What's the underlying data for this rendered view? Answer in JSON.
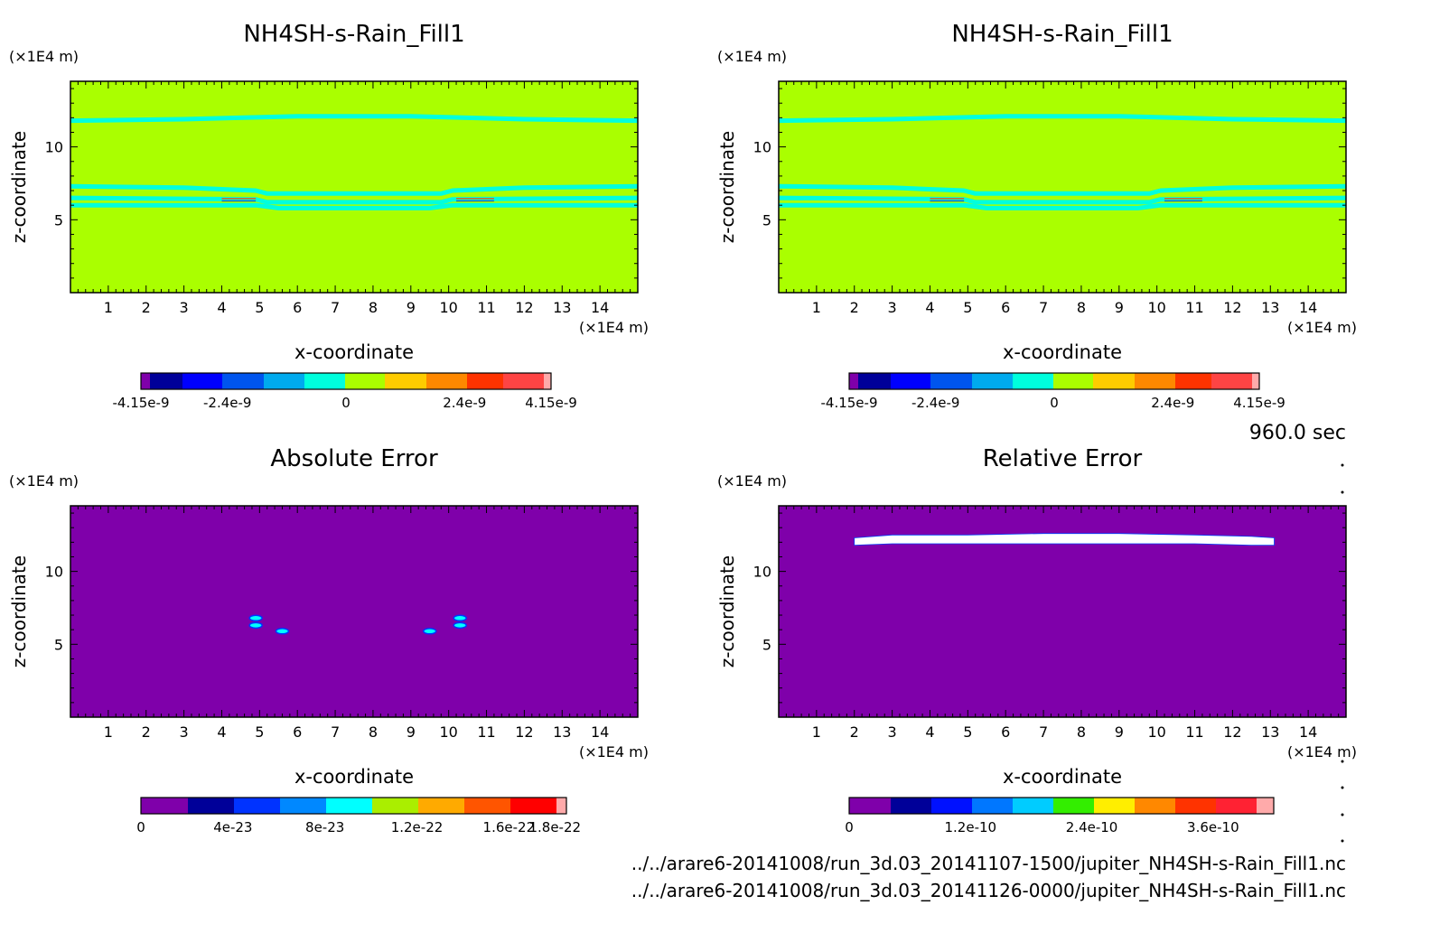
{
  "time_label": "960.0 sec",
  "file_paths": [
    "../../arare6-20141008/run_3d.03_20141107-1500/jupiter_NH4SH-s-Rain_Fill1.nc",
    "../../arare6-20141008/run_3d.03_20141126-0000/jupiter_NH4SH-s-Rain_Fill1.nc"
  ],
  "colors": {
    "dataset_background": "#aaff00",
    "dataset_contour": "#00ffdd",
    "error_background": "#7f00aa",
    "relative_high": "#ffffff"
  },
  "chart_data": [
    {
      "type": "heatmap",
      "title": "NH4SH-s-Rain_Fill1",
      "xlabel": "x-coordinate",
      "ylabel": "z-coordinate",
      "x_unit": "(×1E4 m)",
      "z_unit": "(×1E4 m)",
      "xlim": [
        0,
        15
      ],
      "zlim": [
        0,
        14.5
      ],
      "x_ticks": [
        1,
        2,
        3,
        4,
        5,
        6,
        7,
        8,
        9,
        10,
        11,
        12,
        13,
        14
      ],
      "z_ticks": [
        5,
        10
      ],
      "background_color": "#aaff00",
      "contour_bands": [
        {
          "x": [
            0,
            3,
            4.9,
            5.2,
            9.8,
            10.1,
            12,
            15
          ],
          "z": [
            7.3,
            7.2,
            7.0,
            6.8,
            6.8,
            7.0,
            7.2,
            7.3
          ]
        },
        {
          "x": [
            0,
            4.9,
            5.2,
            9.8,
            10.1,
            15
          ],
          "z": [
            6.5,
            6.4,
            6.2,
            6.2,
            6.4,
            6.5
          ]
        },
        {
          "x": [
            0,
            4.9,
            5.5,
            9.5,
            10.1,
            15
          ],
          "z": [
            6.0,
            6.0,
            5.8,
            5.8,
            6.0,
            6.0
          ]
        },
        {
          "x": [
            0,
            3,
            6,
            9,
            12,
            15
          ],
          "z": [
            11.8,
            11.9,
            12.1,
            12.1,
            11.9,
            11.8
          ]
        }
      ],
      "colorbar": {
        "ticks": [
          "-4.15e-9",
          "-2.4e-9",
          "0",
          "2.4e-9",
          "4.15e-9"
        ],
        "tick_values": [
          -4.15e-09,
          -2.4e-09,
          0,
          2.4e-09,
          4.15e-09
        ],
        "range": [
          -4.15e-09,
          4.15e-09
        ],
        "colors": [
          "#7f00aa",
          "#000099",
          "#0000ff",
          "#0055ee",
          "#00aaee",
          "#00ffdd",
          "#aaff00",
          "#ffcc00",
          "#ff8800",
          "#ff3300",
          "#ff4444",
          "#ffaaaa"
        ],
        "widths": [
          10,
          36,
          44,
          46,
          45,
          45,
          44,
          46,
          45,
          40,
          45,
          8
        ]
      }
    },
    {
      "type": "heatmap",
      "title": "NH4SH-s-Rain_Fill1",
      "xlabel": "x-coordinate",
      "ylabel": "z-coordinate",
      "x_unit": "(×1E4 m)",
      "z_unit": "(×1E4 m)",
      "xlim": [
        0,
        15
      ],
      "zlim": [
        0,
        14.5
      ],
      "x_ticks": [
        1,
        2,
        3,
        4,
        5,
        6,
        7,
        8,
        9,
        10,
        11,
        12,
        13,
        14
      ],
      "z_ticks": [
        5,
        10
      ],
      "background_color": "#aaff00",
      "contour_bands": [
        {
          "x": [
            0,
            3,
            4.9,
            5.2,
            9.8,
            10.1,
            12,
            15
          ],
          "z": [
            7.3,
            7.2,
            7.0,
            6.8,
            6.8,
            7.0,
            7.2,
            7.3
          ]
        },
        {
          "x": [
            0,
            4.9,
            5.2,
            9.8,
            10.1,
            15
          ],
          "z": [
            6.5,
            6.4,
            6.2,
            6.2,
            6.4,
            6.5
          ]
        },
        {
          "x": [
            0,
            4.9,
            5.5,
            9.5,
            10.1,
            15
          ],
          "z": [
            6.0,
            6.0,
            5.8,
            5.8,
            6.0,
            6.0
          ]
        },
        {
          "x": [
            0,
            3,
            6,
            9,
            12,
            15
          ],
          "z": [
            11.8,
            11.9,
            12.1,
            12.1,
            11.9,
            11.8
          ]
        }
      ],
      "colorbar": {
        "ticks": [
          "-4.15e-9",
          "-2.4e-9",
          "0",
          "2.4e-9",
          "4.15e-9"
        ],
        "tick_values": [
          -4.15e-09,
          -2.4e-09,
          0,
          2.4e-09,
          4.15e-09
        ],
        "range": [
          -4.15e-09,
          4.15e-09
        ],
        "colors": [
          "#7f00aa",
          "#000099",
          "#0000ff",
          "#0055ee",
          "#00aaee",
          "#00ffdd",
          "#aaff00",
          "#ffcc00",
          "#ff8800",
          "#ff3300",
          "#ff4444",
          "#ffaaaa"
        ],
        "widths": [
          10,
          36,
          44,
          46,
          45,
          45,
          44,
          46,
          45,
          40,
          45,
          8
        ]
      }
    },
    {
      "type": "heatmap",
      "title": "Absolute Error",
      "xlabel": "x-coordinate",
      "ylabel": "z-coordinate",
      "x_unit": "(×1E4 m)",
      "z_unit": "(×1E4 m)",
      "xlim": [
        0,
        15
      ],
      "zlim": [
        0,
        14.5
      ],
      "x_ticks": [
        1,
        2,
        3,
        4,
        5,
        6,
        7,
        8,
        9,
        10,
        11,
        12,
        13,
        14
      ],
      "z_ticks": [
        5,
        10
      ],
      "background_color": "#7f00aa",
      "error_spots": [
        {
          "x": 4.9,
          "z": 6.8
        },
        {
          "x": 4.9,
          "z": 6.3
        },
        {
          "x": 5.6,
          "z": 5.9
        },
        {
          "x": 10.3,
          "z": 6.8
        },
        {
          "x": 10.3,
          "z": 6.3
        },
        {
          "x": 9.5,
          "z": 5.9
        }
      ],
      "colorbar": {
        "ticks": [
          "0",
          "4e-23",
          "8e-23",
          "1.2e-22",
          "1.6e-22",
          "1.8e-22"
        ],
        "tick_values": [
          0,
          4e-23,
          8e-23,
          1.2e-22,
          1.6e-22,
          1.8e-22
        ],
        "range": [
          0,
          1.85e-22
        ],
        "colors": [
          "#7f00aa",
          "#000099",
          "#0033ff",
          "#0088ff",
          "#00ffff",
          "#aaee00",
          "#ffaa00",
          "#ff5500",
          "#ff0000",
          "#ffaaaa"
        ],
        "widths": [
          52,
          51,
          51,
          51,
          51,
          51,
          51,
          51,
          51,
          11
        ]
      }
    },
    {
      "type": "heatmap",
      "title": "Relative Error",
      "xlabel": "x-coordinate",
      "ylabel": "z-coordinate",
      "x_unit": "(×1E4 m)",
      "z_unit": "(×1E4 m)",
      "xlim": [
        0,
        15
      ],
      "zlim": [
        0,
        14.5
      ],
      "x_ticks": [
        1,
        2,
        3,
        4,
        5,
        6,
        7,
        8,
        9,
        10,
        11,
        12,
        13,
        14
      ],
      "z_ticks": [
        5,
        10
      ],
      "background_color": "#7f00aa",
      "high_region": {
        "x": [
          2.0,
          3,
          5,
          7,
          9,
          11,
          12.5,
          13.1
        ],
        "z_top": [
          12.3,
          12.5,
          12.5,
          12.6,
          12.6,
          12.5,
          12.4,
          12.3
        ],
        "z_bottom": [
          11.8,
          11.9,
          11.9,
          11.9,
          11.9,
          11.9,
          11.8,
          11.8
        ]
      },
      "colorbar": {
        "ticks": [
          "0",
          "1.2e-10",
          "2.4e-10",
          "3.6e-10"
        ],
        "tick_values": [
          0,
          1.2e-10,
          2.4e-10,
          3.6e-10
        ],
        "range": [
          0,
          4.2e-10
        ],
        "colors": [
          "#7f00aa",
          "#000099",
          "#0011ff",
          "#0077ff",
          "#00ccff",
          "#33ee00",
          "#ffee00",
          "#ff8800",
          "#ff3300",
          "#ff2233",
          "#ffaaaa"
        ],
        "widths": [
          46,
          45,
          45,
          45,
          45,
          45,
          45,
          45,
          45,
          45,
          19
        ]
      }
    }
  ]
}
